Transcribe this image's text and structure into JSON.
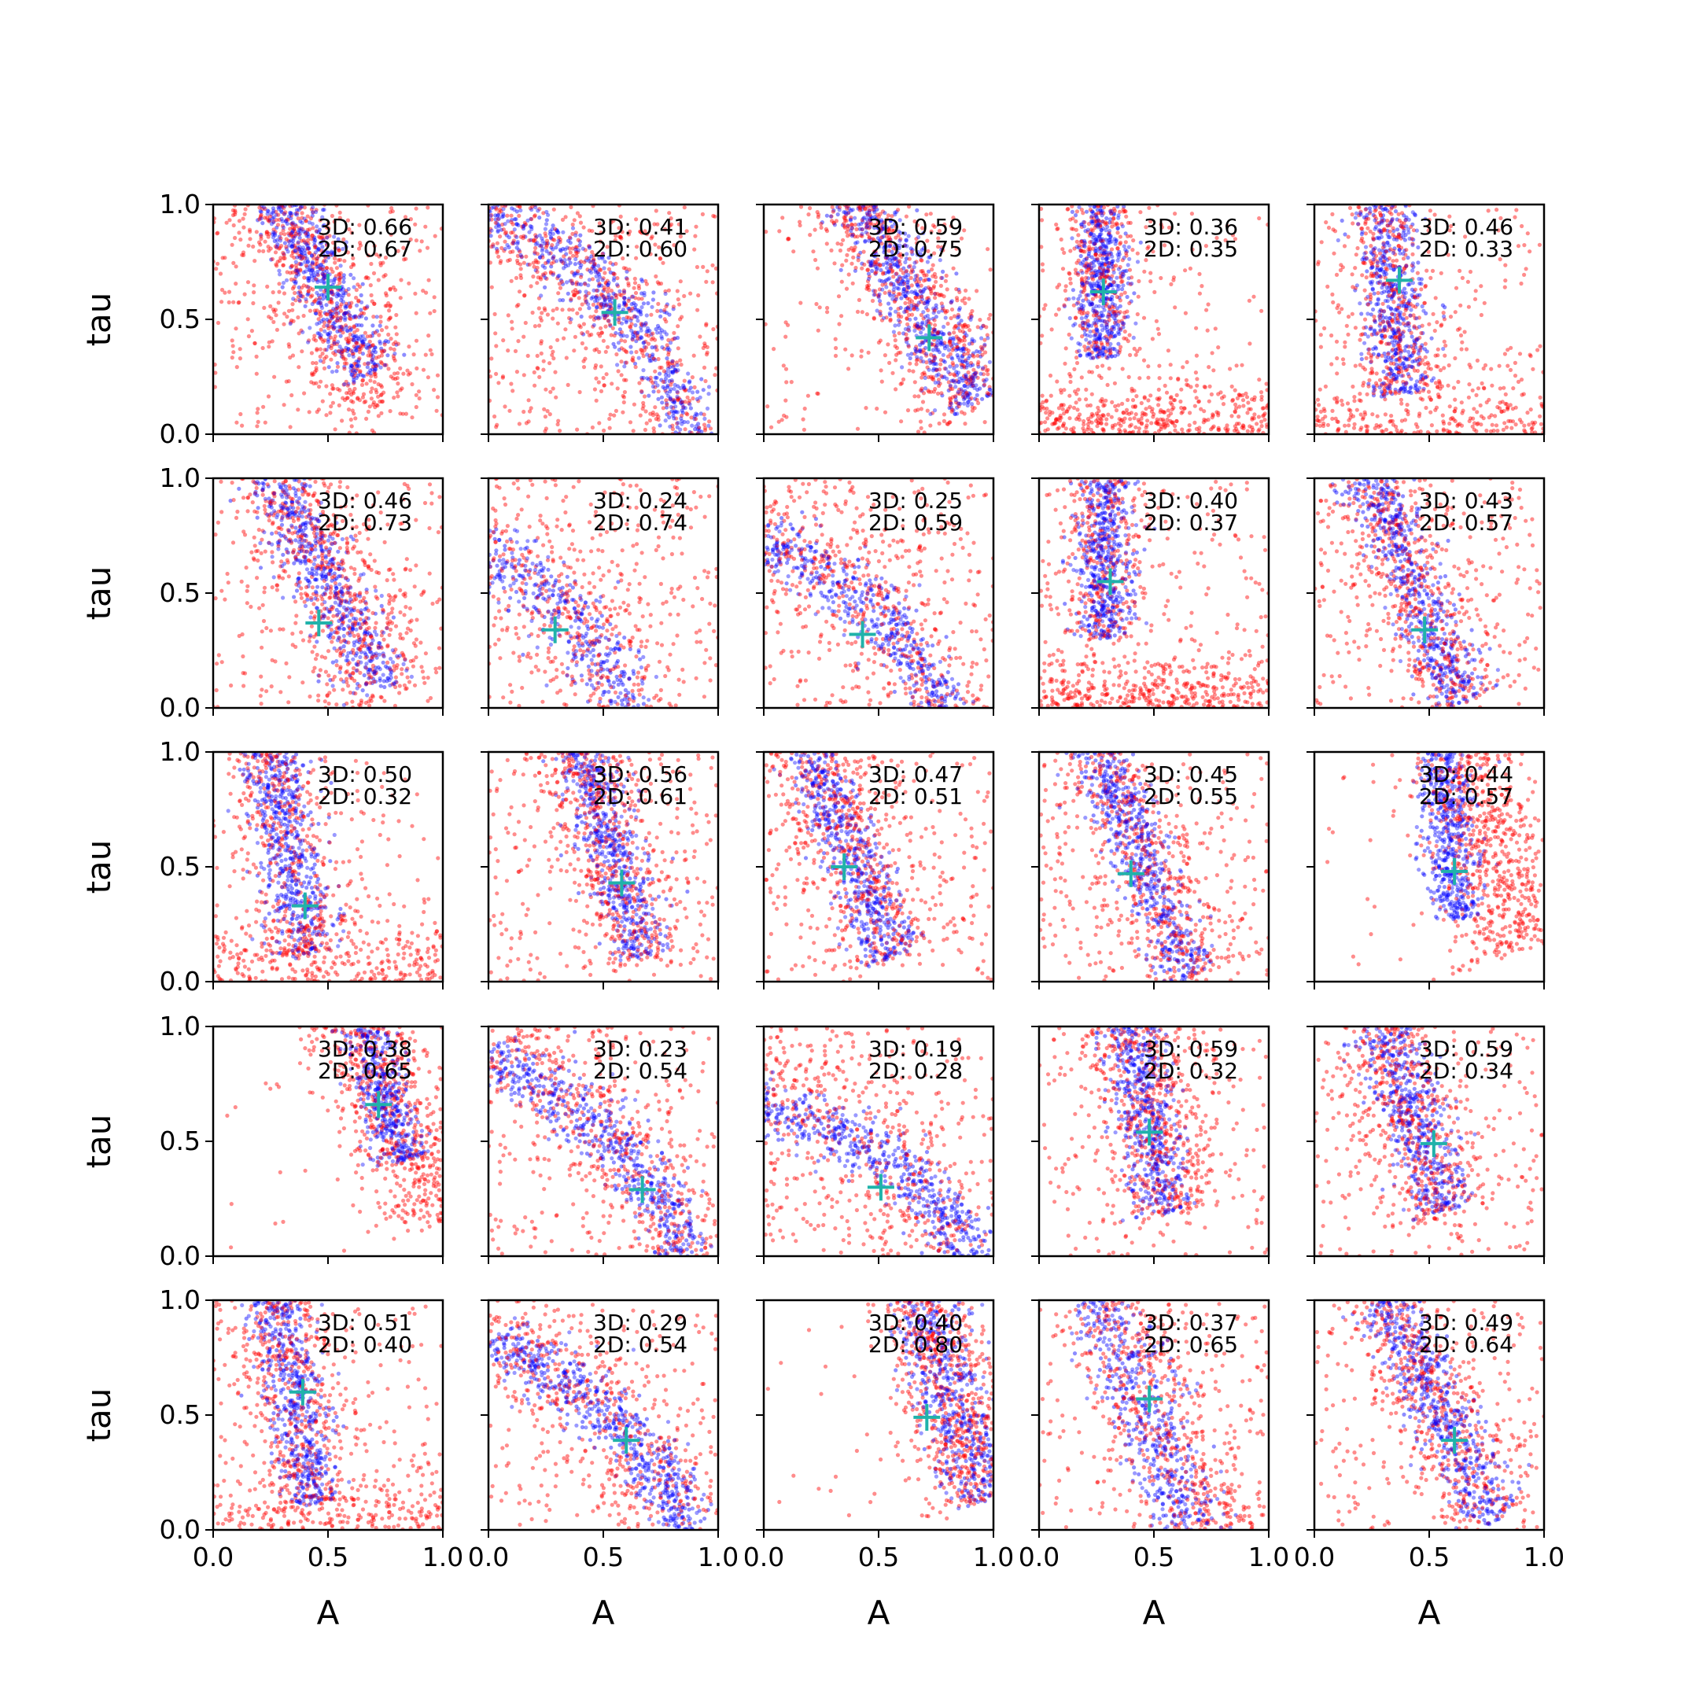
{
  "chart_data": {
    "type": "scatter",
    "layout": "5x5 grid of scatter subplots with shared axes",
    "xlabel": "A",
    "ylabel": "tau",
    "xlim": [
      0,
      1
    ],
    "ylim": [
      0,
      1
    ],
    "xticks": [
      "0.0",
      "0.5",
      "1.0"
    ],
    "yticks": [
      "0.0",
      "0.5",
      "1.0"
    ],
    "grid": false,
    "legend": "none",
    "series_styles": {
      "3D": {
        "color": "#0000ff",
        "alpha": 0.4
      },
      "2D": {
        "color": "#ff0000",
        "alpha": 0.4
      },
      "truth": {
        "color": "#20b2aa",
        "marker": "plus"
      }
    },
    "panels": [
      {
        "label_3d": "3D: 0.66",
        "label_2d": "2D: 0.67",
        "truth": [
          0.5,
          0.64
        ],
        "b": {
          "c": [
            0.43,
            0.75
          ],
          "d": [
            -0.5,
            1
          ],
          "L": 0.55,
          "W": 0.07,
          "n": 700
        },
        "r": {
          "c": [
            0.45,
            0.65
          ],
          "d": [
            -0.5,
            1
          ],
          "L": 0.6,
          "W": 0.12,
          "n": 620,
          "bgn": 280
        }
      },
      {
        "label_3d": "3D: 0.41",
        "label_2d": "2D: 0.60",
        "truth": [
          0.55,
          0.53
        ],
        "b": {
          "c": [
            0.58,
            0.55
          ],
          "d": [
            -0.9,
            1
          ],
          "L": 0.85,
          "W": 0.07,
          "n": 700,
          "curve": 0.35
        },
        "r": {
          "c": [
            0.55,
            0.55
          ],
          "d": [
            -0.9,
            1
          ],
          "L": 0.85,
          "W": 0.13,
          "n": 560,
          "curve": 0.35,
          "bgn": 320
        }
      },
      {
        "label_3d": "3D: 0.59",
        "label_2d": "2D: 0.75",
        "truth": [
          0.72,
          0.42
        ],
        "b": {
          "c": [
            0.62,
            0.65
          ],
          "d": [
            -0.6,
            1
          ],
          "L": 0.6,
          "W": 0.07,
          "n": 700
        },
        "r": {
          "c": [
            0.62,
            0.65
          ],
          "d": [
            -0.6,
            1
          ],
          "L": 0.62,
          "W": 0.12,
          "n": 660,
          "bgn": 140
        }
      },
      {
        "label_3d": "3D: 0.36",
        "label_2d": "2D: 0.35",
        "truth": [
          0.28,
          0.62
        ],
        "b": {
          "c": [
            0.27,
            0.78
          ],
          "d": [
            0,
            1
          ],
          "L": 0.45,
          "W": 0.06,
          "n": 650
        },
        "r": {
          "c": [
            0.27,
            0.78
          ],
          "d": [
            0,
            1
          ],
          "L": 0.45,
          "W": 0.1,
          "n": 420,
          "low": 380,
          "bgn": 120
        }
      },
      {
        "label_3d": "3D: 0.46",
        "label_2d": "2D: 0.33",
        "truth": [
          0.37,
          0.67
        ],
        "b": {
          "c": [
            0.33,
            0.72
          ],
          "d": [
            -0.1,
            1
          ],
          "L": 0.55,
          "W": 0.07,
          "n": 650
        },
        "r": {
          "c": [
            0.33,
            0.72
          ],
          "d": [
            -0.1,
            1
          ],
          "L": 0.55,
          "W": 0.1,
          "n": 460,
          "low": 240,
          "bgn": 180
        }
      },
      {
        "label_3d": "3D: 0.46",
        "label_2d": "2D: 0.73",
        "truth": [
          0.46,
          0.37
        ],
        "b": {
          "c": [
            0.45,
            0.65
          ],
          "d": [
            -0.5,
            1
          ],
          "L": 0.65,
          "W": 0.07,
          "n": 650
        },
        "r": {
          "c": [
            0.47,
            0.62
          ],
          "d": [
            -0.5,
            1
          ],
          "L": 0.65,
          "W": 0.13,
          "n": 640,
          "bgn": 220
        }
      },
      {
        "label_3d": "3D: 0.24",
        "label_2d": "2D: 0.74",
        "truth": [
          0.29,
          0.34
        ],
        "b": {
          "c": [
            0.3,
            0.45
          ],
          "d": [
            -1.1,
            1
          ],
          "L": 0.9,
          "W": 0.08,
          "n": 700,
          "curve": 0.45
        },
        "r": {
          "c": [
            0.3,
            0.45
          ],
          "d": [
            -1.1,
            1
          ],
          "L": 0.9,
          "W": 0.16,
          "n": 520,
          "curve": 0.45,
          "bgn": 280
        }
      },
      {
        "label_3d": "3D: 0.25",
        "label_2d": "2D: 0.59",
        "truth": [
          0.43,
          0.32
        ],
        "b": {
          "c": [
            0.5,
            0.4
          ],
          "d": [
            -1.0,
            1
          ],
          "L": 0.8,
          "W": 0.07,
          "n": 700,
          "curve": 0.4
        },
        "r": {
          "c": [
            0.45,
            0.45
          ],
          "d": [
            -1.0,
            1
          ],
          "L": 0.85,
          "W": 0.14,
          "n": 560,
          "curve": 0.4,
          "bgn": 260
        }
      },
      {
        "label_3d": "3D: 0.40",
        "label_2d": "2D: 0.37",
        "truth": [
          0.31,
          0.55
        ],
        "b": {
          "c": [
            0.28,
            0.75
          ],
          "d": [
            0,
            1
          ],
          "L": 0.45,
          "W": 0.06,
          "n": 620
        },
        "r": {
          "c": [
            0.28,
            0.75
          ],
          "d": [
            0,
            1
          ],
          "L": 0.45,
          "W": 0.1,
          "n": 380,
          "low": 360,
          "bgn": 180
        }
      },
      {
        "label_3d": "3D: 0.43",
        "label_2d": "2D: 0.57",
        "truth": [
          0.48,
          0.34
        ],
        "b": {
          "c": [
            0.4,
            0.62
          ],
          "d": [
            -0.4,
            1
          ],
          "L": 0.65,
          "W": 0.07,
          "n": 680
        },
        "r": {
          "c": [
            0.4,
            0.62
          ],
          "d": [
            -0.4,
            1
          ],
          "L": 0.65,
          "W": 0.12,
          "n": 540,
          "bgn": 260
        }
      },
      {
        "label_3d": "3D: 0.50",
        "label_2d": "2D: 0.32",
        "truth": [
          0.4,
          0.33
        ],
        "b": {
          "c": [
            0.3,
            0.7
          ],
          "d": [
            -0.2,
            1
          ],
          "L": 0.6,
          "W": 0.07,
          "n": 680
        },
        "r": {
          "c": [
            0.3,
            0.7
          ],
          "d": [
            -0.2,
            1
          ],
          "L": 0.6,
          "W": 0.11,
          "n": 480,
          "low": 260,
          "bgn": 150
        }
      },
      {
        "label_3d": "3D: 0.56",
        "label_2d": "2D: 0.61",
        "truth": [
          0.58,
          0.43
        ],
        "b": {
          "c": [
            0.5,
            0.68
          ],
          "d": [
            -0.3,
            1
          ],
          "L": 0.6,
          "W": 0.07,
          "n": 680
        },
        "r": {
          "c": [
            0.5,
            0.68
          ],
          "d": [
            -0.3,
            1
          ],
          "L": 0.62,
          "W": 0.11,
          "n": 560,
          "bgn": 280
        }
      },
      {
        "label_3d": "3D: 0.47",
        "label_2d": "2D: 0.51",
        "truth": [
          0.35,
          0.5
        ],
        "b": {
          "c": [
            0.33,
            0.68
          ],
          "d": [
            -0.4,
            1
          ],
          "L": 0.62,
          "W": 0.07,
          "n": 680
        },
        "r": {
          "c": [
            0.33,
            0.68
          ],
          "d": [
            -0.4,
            1
          ],
          "L": 0.64,
          "W": 0.12,
          "n": 560,
          "bgn": 280
        }
      },
      {
        "label_3d": "3D: 0.45",
        "label_2d": "2D: 0.55",
        "truth": [
          0.4,
          0.47
        ],
        "b": {
          "c": [
            0.42,
            0.62
          ],
          "d": [
            -0.4,
            1
          ],
          "L": 0.65,
          "W": 0.07,
          "n": 680
        },
        "r": {
          "c": [
            0.42,
            0.62
          ],
          "d": [
            -0.4,
            1
          ],
          "L": 0.66,
          "W": 0.12,
          "n": 560,
          "bgn": 260
        }
      },
      {
        "label_3d": "3D: 0.44",
        "label_2d": "2D: 0.57",
        "truth": [
          0.61,
          0.48
        ],
        "b": {
          "c": [
            0.58,
            0.72
          ],
          "d": [
            -0.1,
            1
          ],
          "L": 0.45,
          "W": 0.06,
          "n": 620
        },
        "r": {
          "c": [
            0.75,
            0.65
          ],
          "d": [
            -0.3,
            1
          ],
          "L": 0.55,
          "W": 0.13,
          "n": 820,
          "bgn": 30
        }
      },
      {
        "label_3d": "3D: 0.38",
        "label_2d": "2D: 0.65",
        "truth": [
          0.72,
          0.66
        ],
        "b": {
          "c": [
            0.72,
            0.8
          ],
          "d": [
            -0.3,
            1
          ],
          "L": 0.4,
          "W": 0.06,
          "n": 560
        },
        "r": {
          "c": [
            0.78,
            0.7
          ],
          "d": [
            -0.4,
            1
          ],
          "L": 0.6,
          "W": 0.14,
          "n": 860,
          "bgn": 20
        }
      },
      {
        "label_3d": "3D: 0.23",
        "label_2d": "2D: 0.54",
        "truth": [
          0.67,
          0.29
        ],
        "b": {
          "c": [
            0.6,
            0.45
          ],
          "d": [
            -0.9,
            1
          ],
          "L": 0.75,
          "W": 0.07,
          "n": 680,
          "curve": 0.35
        },
        "r": {
          "c": [
            0.5,
            0.55
          ],
          "d": [
            -0.9,
            1
          ],
          "L": 0.85,
          "W": 0.14,
          "n": 560,
          "curve": 0.35,
          "bgn": 220
        }
      },
      {
        "label_3d": "3D: 0.19",
        "label_2d": "2D: 0.28",
        "truth": [
          0.51,
          0.3
        ],
        "b": {
          "c": [
            0.62,
            0.35
          ],
          "d": [
            -1.2,
            1
          ],
          "L": 0.75,
          "W": 0.07,
          "n": 700,
          "curve": 0.4
        },
        "r": {
          "c": [
            0.4,
            0.55
          ],
          "d": [
            -1.2,
            1
          ],
          "L": 0.9,
          "W": 0.18,
          "n": 520,
          "curve": 0.4,
          "bgn": 260
        }
      },
      {
        "label_3d": "3D: 0.59",
        "label_2d": "2D: 0.32",
        "truth": [
          0.48,
          0.54
        ],
        "b": {
          "c": [
            0.45,
            0.72
          ],
          "d": [
            -0.2,
            1
          ],
          "L": 0.55,
          "W": 0.07,
          "n": 680
        },
        "r": {
          "c": [
            0.47,
            0.72
          ],
          "d": [
            -0.2,
            1
          ],
          "L": 0.55,
          "W": 0.12,
          "n": 640,
          "bgn": 200
        }
      },
      {
        "label_3d": "3D: 0.59",
        "label_2d": "2D: 0.34",
        "truth": [
          0.52,
          0.49
        ],
        "b": {
          "c": [
            0.4,
            0.72
          ],
          "d": [
            -0.3,
            1
          ],
          "L": 0.55,
          "W": 0.07,
          "n": 660
        },
        "r": {
          "c": [
            0.4,
            0.72
          ],
          "d": [
            -0.3,
            1
          ],
          "L": 0.58,
          "W": 0.12,
          "n": 560,
          "bgn": 260
        }
      },
      {
        "label_3d": "3D: 0.51",
        "label_2d": "2D: 0.40",
        "truth": [
          0.39,
          0.6
        ],
        "b": {
          "c": [
            0.33,
            0.7
          ],
          "d": [
            -0.2,
            1
          ],
          "L": 0.6,
          "W": 0.07,
          "n": 680
        },
        "r": {
          "c": [
            0.33,
            0.7
          ],
          "d": [
            -0.2,
            1
          ],
          "L": 0.6,
          "W": 0.11,
          "n": 480,
          "low": 200,
          "bgn": 220
        }
      },
      {
        "label_3d": "3D: 0.29",
        "label_2d": "2D: 0.54",
        "truth": [
          0.6,
          0.39
        ],
        "b": {
          "c": [
            0.6,
            0.42
          ],
          "d": [
            -0.9,
            1
          ],
          "L": 0.7,
          "W": 0.07,
          "n": 680,
          "curve": 0.35
        },
        "r": {
          "c": [
            0.5,
            0.55
          ],
          "d": [
            -0.9,
            1
          ],
          "L": 0.85,
          "W": 0.14,
          "n": 580,
          "curve": 0.35,
          "bgn": 200
        }
      },
      {
        "label_3d": "3D: 0.40",
        "label_2d": "2D: 0.80",
        "truth": [
          0.71,
          0.49
        ],
        "b": {
          "c": [
            0.8,
            0.65
          ],
          "d": [
            -0.3,
            1
          ],
          "L": 0.55,
          "W": 0.08,
          "n": 640
        },
        "r": {
          "c": [
            0.8,
            0.65
          ],
          "d": [
            -0.3,
            1
          ],
          "L": 0.55,
          "W": 0.11,
          "n": 760,
          "bgn": 30
        }
      },
      {
        "label_3d": "3D: 0.37",
        "label_2d": "2D: 0.65",
        "truth": [
          0.48,
          0.57
        ],
        "b": {
          "c": [
            0.45,
            0.55
          ],
          "d": [
            -0.4,
            1
          ],
          "L": 0.75,
          "W": 0.08,
          "n": 680
        },
        "r": {
          "c": [
            0.5,
            0.58
          ],
          "d": [
            -0.45,
            1
          ],
          "L": 0.8,
          "W": 0.13,
          "n": 620,
          "bgn": 200
        }
      },
      {
        "label_3d": "3D: 0.49",
        "label_2d": "2D: 0.64",
        "truth": [
          0.61,
          0.39
        ],
        "b": {
          "c": [
            0.5,
            0.62
          ],
          "d": [
            -0.5,
            1
          ],
          "L": 0.65,
          "W": 0.07,
          "n": 680
        },
        "r": {
          "c": [
            0.48,
            0.65
          ],
          "d": [
            -0.5,
            1
          ],
          "L": 0.68,
          "W": 0.12,
          "n": 580,
          "bgn": 220
        }
      }
    ]
  }
}
